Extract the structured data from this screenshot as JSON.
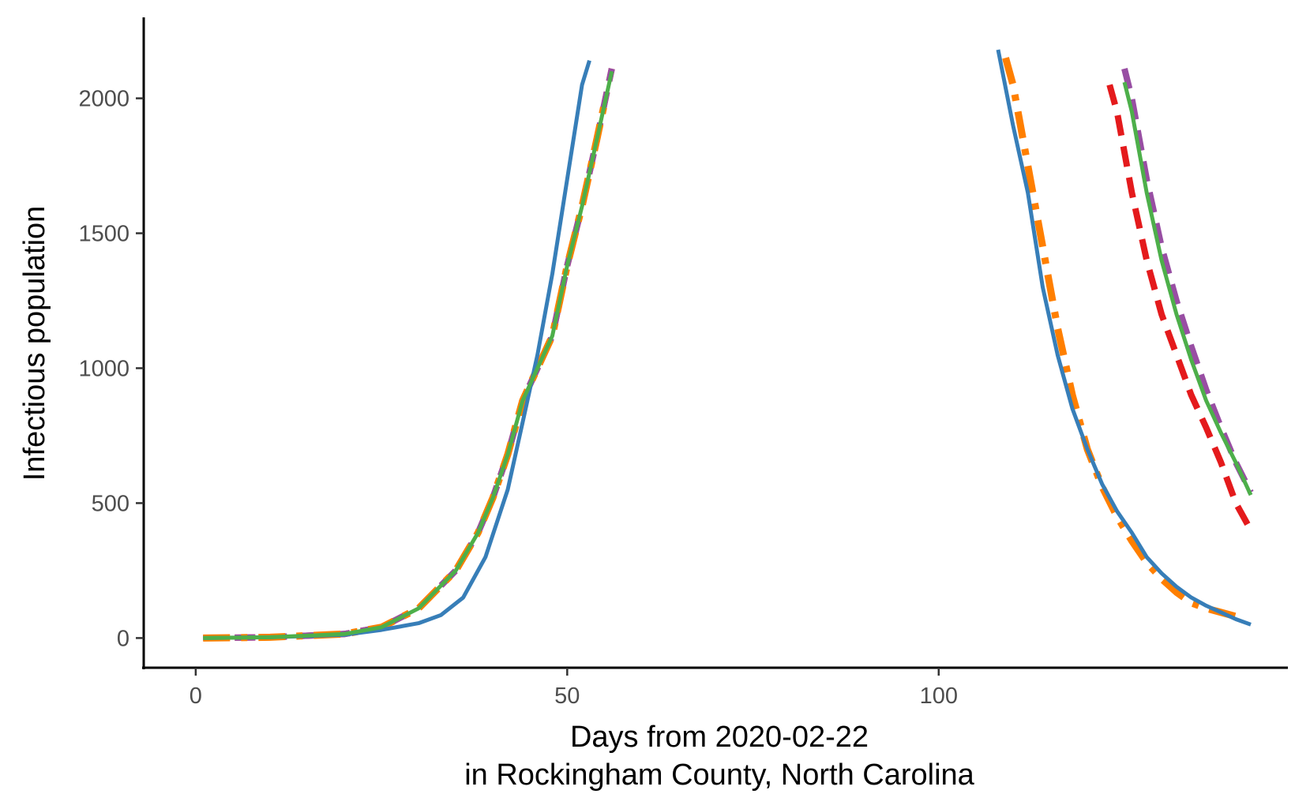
{
  "chart_data": {
    "type": "line",
    "title": "",
    "xlabel_line1": "Days from 2020-02-22",
    "xlabel_line2": "in Rockingham County, North Carolina",
    "ylabel": "Infectious population",
    "xlim": [
      -7,
      147
    ],
    "ylim": [
      -110,
      2300
    ],
    "x_ticks": [
      0,
      50,
      100
    ],
    "y_ticks": [
      0,
      500,
      1000,
      1500,
      2000
    ],
    "grid": false,
    "legend": "none",
    "series": [
      {
        "color": "#377eb8",
        "dash": "solid",
        "segments": [
          {
            "x": [
              1,
              10,
              20,
              25,
              30,
              33,
              36,
              39,
              42,
              44,
              46,
              48,
              50,
              52,
              53
            ],
            "y": [
              0,
              3,
              12,
              30,
              55,
              85,
              150,
              300,
              550,
              800,
              1050,
              1350,
              1700,
              2050,
              2140
            ]
          },
          {
            "x": [
              108,
              110,
              112,
              114,
              116,
              118,
              120,
              122,
              124,
              126,
              128,
              130,
              132,
              134,
              136,
              138,
              140,
              142
            ],
            "y": [
              2180,
              1900,
              1650,
              1300,
              1050,
              850,
              700,
              570,
              470,
              390,
              300,
              240,
              190,
              150,
              120,
              95,
              70,
              50
            ]
          }
        ]
      },
      {
        "color": "#e41a1c",
        "dash": "dashed",
        "segments": [
          {
            "x": [
              1,
              10,
              20,
              25,
              30,
              35,
              38,
              40,
              42,
              44,
              46,
              48,
              50,
              52,
              54,
              55,
              56
            ],
            "y": [
              0,
              3,
              15,
              40,
              110,
              250,
              390,
              520,
              680,
              880,
              1000,
              1120,
              1380,
              1600,
              1850,
              1980,
              2110
            ]
          },
          {
            "x": [
              123,
              124,
              126,
              128,
              130,
              132,
              134,
              136,
              138,
              140,
              142
            ],
            "y": [
              2050,
              1950,
              1650,
              1400,
              1200,
              1050,
              900,
              780,
              650,
              500,
              400
            ]
          }
        ]
      },
      {
        "color": "#984ea3",
        "dash": "dashed",
        "segments": [
          {
            "x": [
              1,
              10,
              20,
              25,
              30,
              35,
              38,
              40,
              42,
              44,
              46,
              48,
              50,
              52,
              54,
              55,
              56
            ],
            "y": [
              0,
              3,
              15,
              40,
              110,
              250,
              390,
              520,
              680,
              880,
              1000,
              1120,
              1380,
              1600,
              1850,
              1980,
              2110
            ]
          },
          {
            "x": [
              125,
              126,
              128,
              130,
              132,
              134,
              136,
              138,
              140,
              142
            ],
            "y": [
              2110,
              2000,
              1700,
              1450,
              1250,
              1080,
              920,
              780,
              650,
              540
            ]
          }
        ]
      },
      {
        "color": "#ff7f00",
        "dash": "dashdot",
        "segments": [
          {
            "x": [
              1,
              10,
              20,
              25,
              30,
              35,
              38,
              40,
              42,
              44,
              46,
              48,
              50,
              52,
              54,
              55
            ],
            "y": [
              0,
              3,
              15,
              40,
              110,
              250,
              390,
              520,
              680,
              880,
              1000,
              1120,
              1380,
              1600,
              1850,
              1980
            ]
          },
          {
            "x": [
              109,
              110,
              112,
              114,
              116,
              118,
              120,
              122,
              124,
              126,
              128,
              130,
              132,
              134,
              136,
              138,
              140
            ],
            "y": [
              2150,
              2050,
              1750,
              1450,
              1150,
              900,
              700,
              560,
              450,
              360,
              280,
              220,
              170,
              130,
              110,
              95,
              80
            ]
          }
        ]
      },
      {
        "color": "#4daf4a",
        "dash": "solid",
        "segments": [
          {
            "x": [
              1,
              10,
              20,
              25,
              30,
              35,
              38,
              40,
              42,
              44,
              46,
              48,
              50,
              52,
              54,
              56
            ],
            "y": [
              0,
              3,
              15,
              40,
              110,
              250,
              390,
              520,
              680,
              880,
              1000,
              1120,
              1380,
              1600,
              1850,
              2100
            ]
          },
          {
            "x": [
              125,
              126,
              128,
              130,
              132,
              134,
              136,
              138,
              140,
              142
            ],
            "y": [
              2060,
              1950,
              1650,
              1400,
              1200,
              1030,
              880,
              760,
              650,
              530
            ]
          }
        ]
      }
    ]
  }
}
